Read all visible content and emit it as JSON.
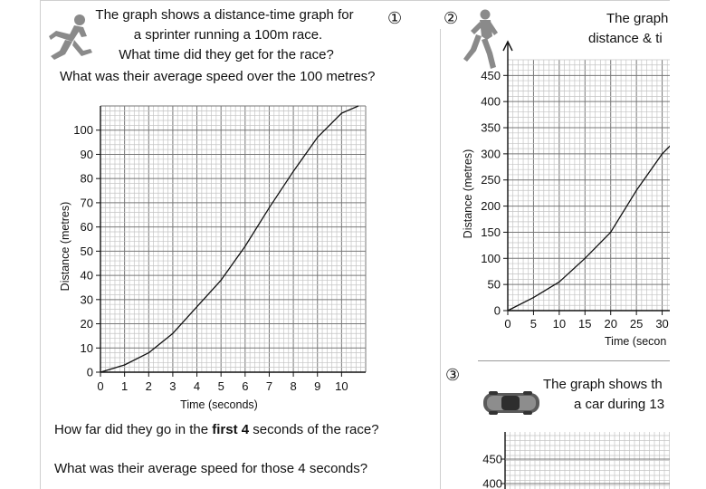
{
  "q1": {
    "number": "①",
    "title_lines": [
      "The graph shows a distance-time graph for",
      "a sprinter running a 100m race.",
      "What time did they get for the race?"
    ],
    "question_speed": "What was their average speed over the 100 metres?",
    "question_first_pre": "How far did they go in the ",
    "question_first_bold": "first 4",
    "question_first_post": " seconds of the race?",
    "question_speed4": "What was their average speed for those 4 seconds?",
    "chart_data": {
      "type": "line",
      "xlabel": "Time (seconds)",
      "ylabel": "Distance (metres)",
      "xlim": [
        0,
        11
      ],
      "ylim": [
        0,
        110
      ],
      "x_ticks": [
        "0",
        "1",
        "2",
        "3",
        "4",
        "5",
        "6",
        "7",
        "8",
        "9",
        "10"
      ],
      "y_ticks": [
        "0",
        "10",
        "20",
        "30",
        "40",
        "50",
        "60",
        "70",
        "80",
        "90",
        "100"
      ],
      "grid": true,
      "series": [
        {
          "x": [
            0,
            1,
            2,
            3,
            4,
            5,
            6,
            7,
            8,
            9,
            10,
            10.7
          ],
          "y": [
            0,
            3,
            8,
            16,
            27,
            38,
            52,
            68,
            83,
            97,
            107,
            110
          ]
        }
      ]
    }
  },
  "q2": {
    "number": "②",
    "title_lines": [
      "The graph",
      "distance & ti"
    ],
    "chart_data": {
      "type": "line",
      "xlabel": "Time (secon",
      "ylabel": "Distance (metres)",
      "x_ticks": [
        "0",
        "5",
        "10",
        "15",
        "20",
        "25",
        "30"
      ],
      "y_ticks": [
        "0",
        "50",
        "100",
        "150",
        "200",
        "250",
        "300",
        "350",
        "400",
        "450"
      ],
      "xlim": [
        0,
        30
      ],
      "ylim": [
        0,
        450
      ],
      "grid": true,
      "series": [
        {
          "x": [
            0,
            5,
            10,
            15,
            20,
            25,
            30,
            32
          ],
          "y": [
            0,
            25,
            55,
            100,
            150,
            230,
            300,
            320
          ]
        }
      ]
    }
  },
  "q3": {
    "number": "③",
    "title_lines": [
      "The graph shows th",
      "a car during 13"
    ],
    "y_ticks": [
      "450",
      "400"
    ]
  }
}
